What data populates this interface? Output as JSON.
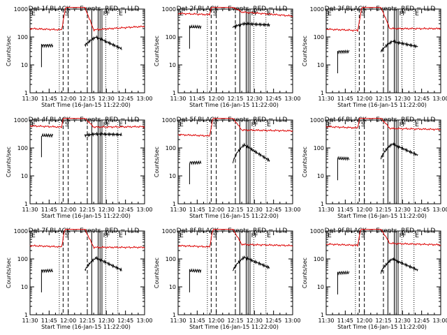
{
  "chart_data": [
    {
      "type": "line",
      "title": "Det 1f BLACK = Events, RED = LLD"
    },
    {
      "type": "line",
      "title": "Det 2f BLACK = Events, RED = LLD"
    },
    {
      "type": "line",
      "title": "Det 3f BLACK = Events, RED = LLD"
    },
    {
      "type": "line",
      "title": "Det 4f BLACK = Events, RED = LLD"
    },
    {
      "type": "line",
      "title": "Det 5f BLACK = Events, RED = LLD"
    },
    {
      "type": "line",
      "title": "Det 6f BLACK = Events, RED = LLD"
    },
    {
      "type": "line",
      "title": "Det 7f BLACK = Events, RED = LLD"
    },
    {
      "type": "line",
      "title": "Det 8f BLACK = Events, RED = LLD"
    },
    {
      "type": "line",
      "title": "Det 9f BLACK = Events, RED = LLD"
    }
  ],
  "shared": {
    "xlabel": "Start Time (16-Jan-15 11:22:00)",
    "ylabel": "Counts/sec",
    "x_ticks": [
      "11:30",
      "11:45",
      "12:00",
      "12:15",
      "12:30",
      "12:45",
      "13:00"
    ],
    "x_range_minutes": [
      690,
      780
    ],
    "y_scale": "log",
    "y_range": [
      1,
      1000
    ],
    "y_ticks": [
      "1",
      "10",
      "100",
      "1000"
    ],
    "flags": [
      "E",
      "S",
      "F",
      "F",
      "E"
    ],
    "colors": {
      "events": "#000000",
      "lld": "#dd0000"
    },
    "series": [
      "Events",
      "LLD"
    ]
  }
}
